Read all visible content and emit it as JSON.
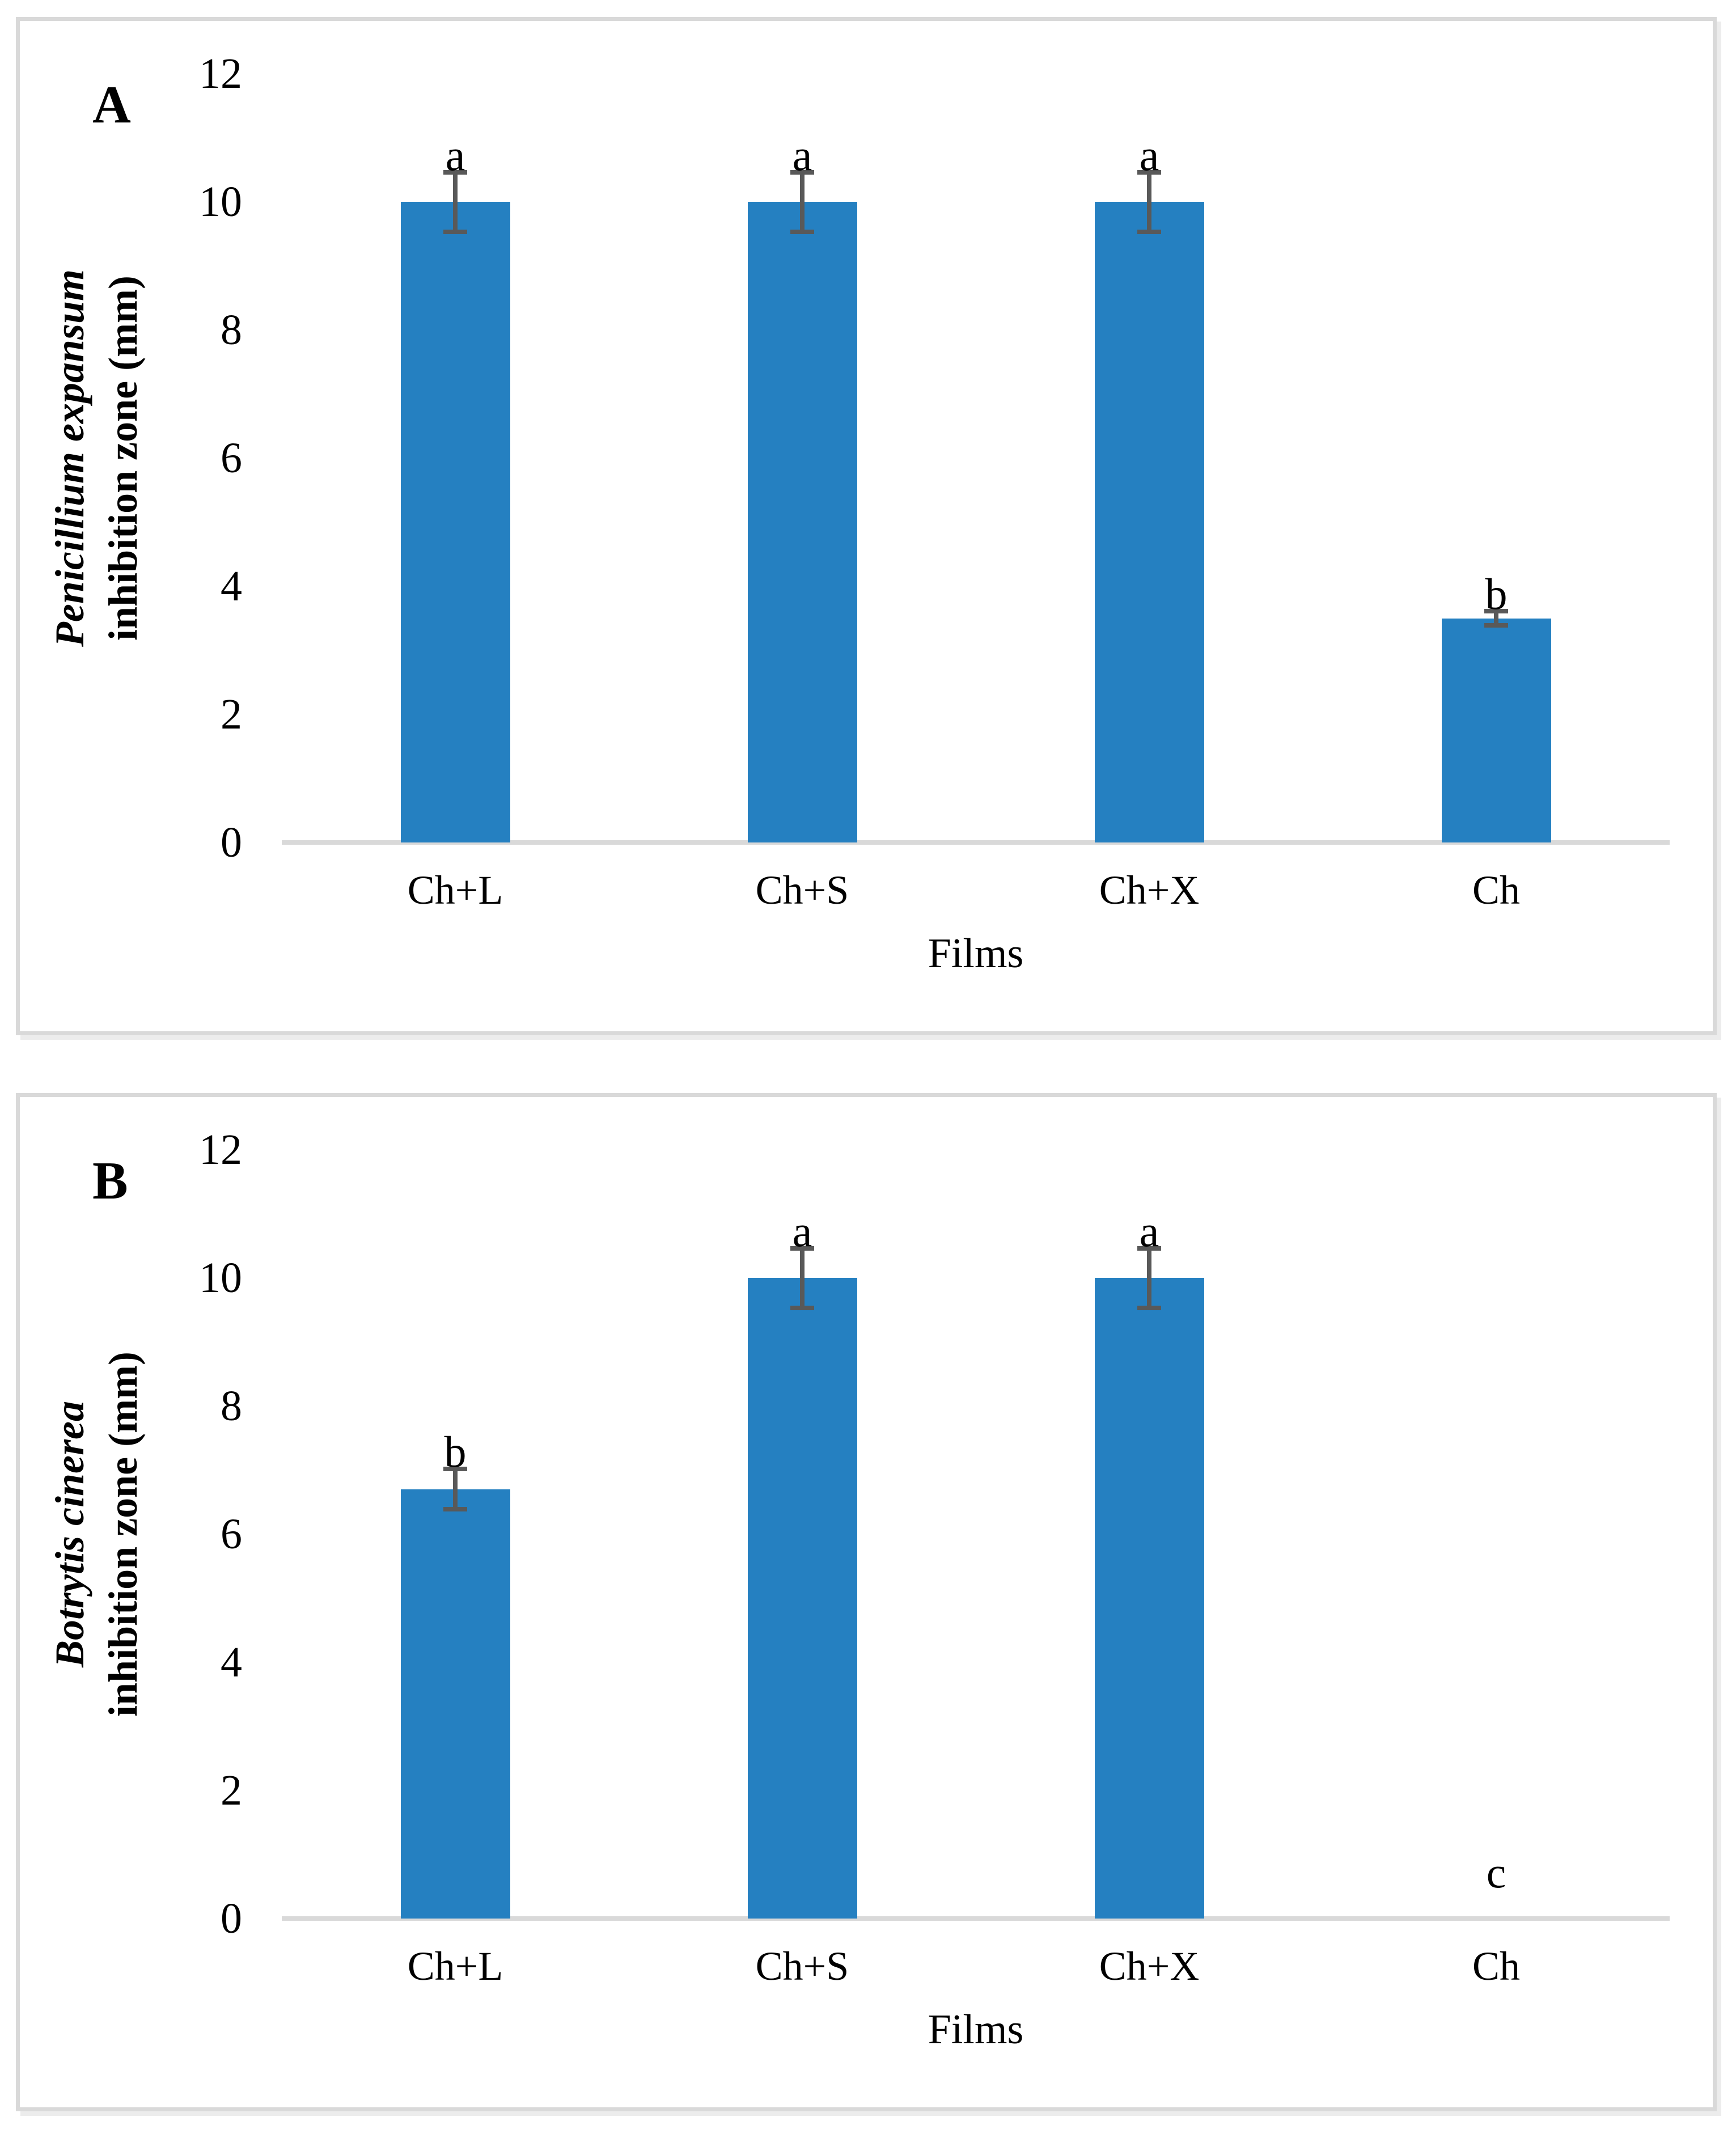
{
  "style": {
    "bar_color": "#2580C1",
    "error_bar_color": "#595959",
    "axis_line_color": "#D9D9D9",
    "frame_border_color": "#D9D9D9",
    "text_color": "#000000",
    "background": "#FFFFFF"
  },
  "chart_data": [
    {
      "type": "bar",
      "panel": "A",
      "categories": [
        "Ch+L",
        "Ch+S",
        "Ch+X",
        "Ch"
      ],
      "values": [
        10,
        10,
        10,
        3.5
      ],
      "errors": [
        0.5,
        0.5,
        0.5,
        0.15
      ],
      "sig_letters": [
        "a",
        "a",
        "a",
        "b"
      ],
      "xlabel": "Films",
      "ylabel_line1": "Penicillium expansum",
      "ylabel_line2": "inhibition zone (mm)",
      "ylim": [
        0,
        12
      ],
      "yticks": [
        12,
        10,
        8,
        6,
        4,
        2,
        0
      ],
      "grid": "off",
      "legend": "none"
    },
    {
      "type": "bar",
      "panel": "B",
      "categories": [
        "Ch+L",
        "Ch+S",
        "Ch+X",
        "Ch"
      ],
      "values": [
        6.7,
        10,
        10,
        0
      ],
      "errors": [
        0.35,
        0.5,
        0.5,
        0
      ],
      "sig_letters": [
        "b",
        "a",
        "a",
        "c"
      ],
      "xlabel": "Films",
      "ylabel_line1": "Botrytis cinerea",
      "ylabel_line2": "inhibition zone (mm)",
      "ylim": [
        0,
        12
      ],
      "yticks": [
        12,
        10,
        8,
        6,
        4,
        2,
        0
      ],
      "grid": "off",
      "legend": "none"
    }
  ]
}
